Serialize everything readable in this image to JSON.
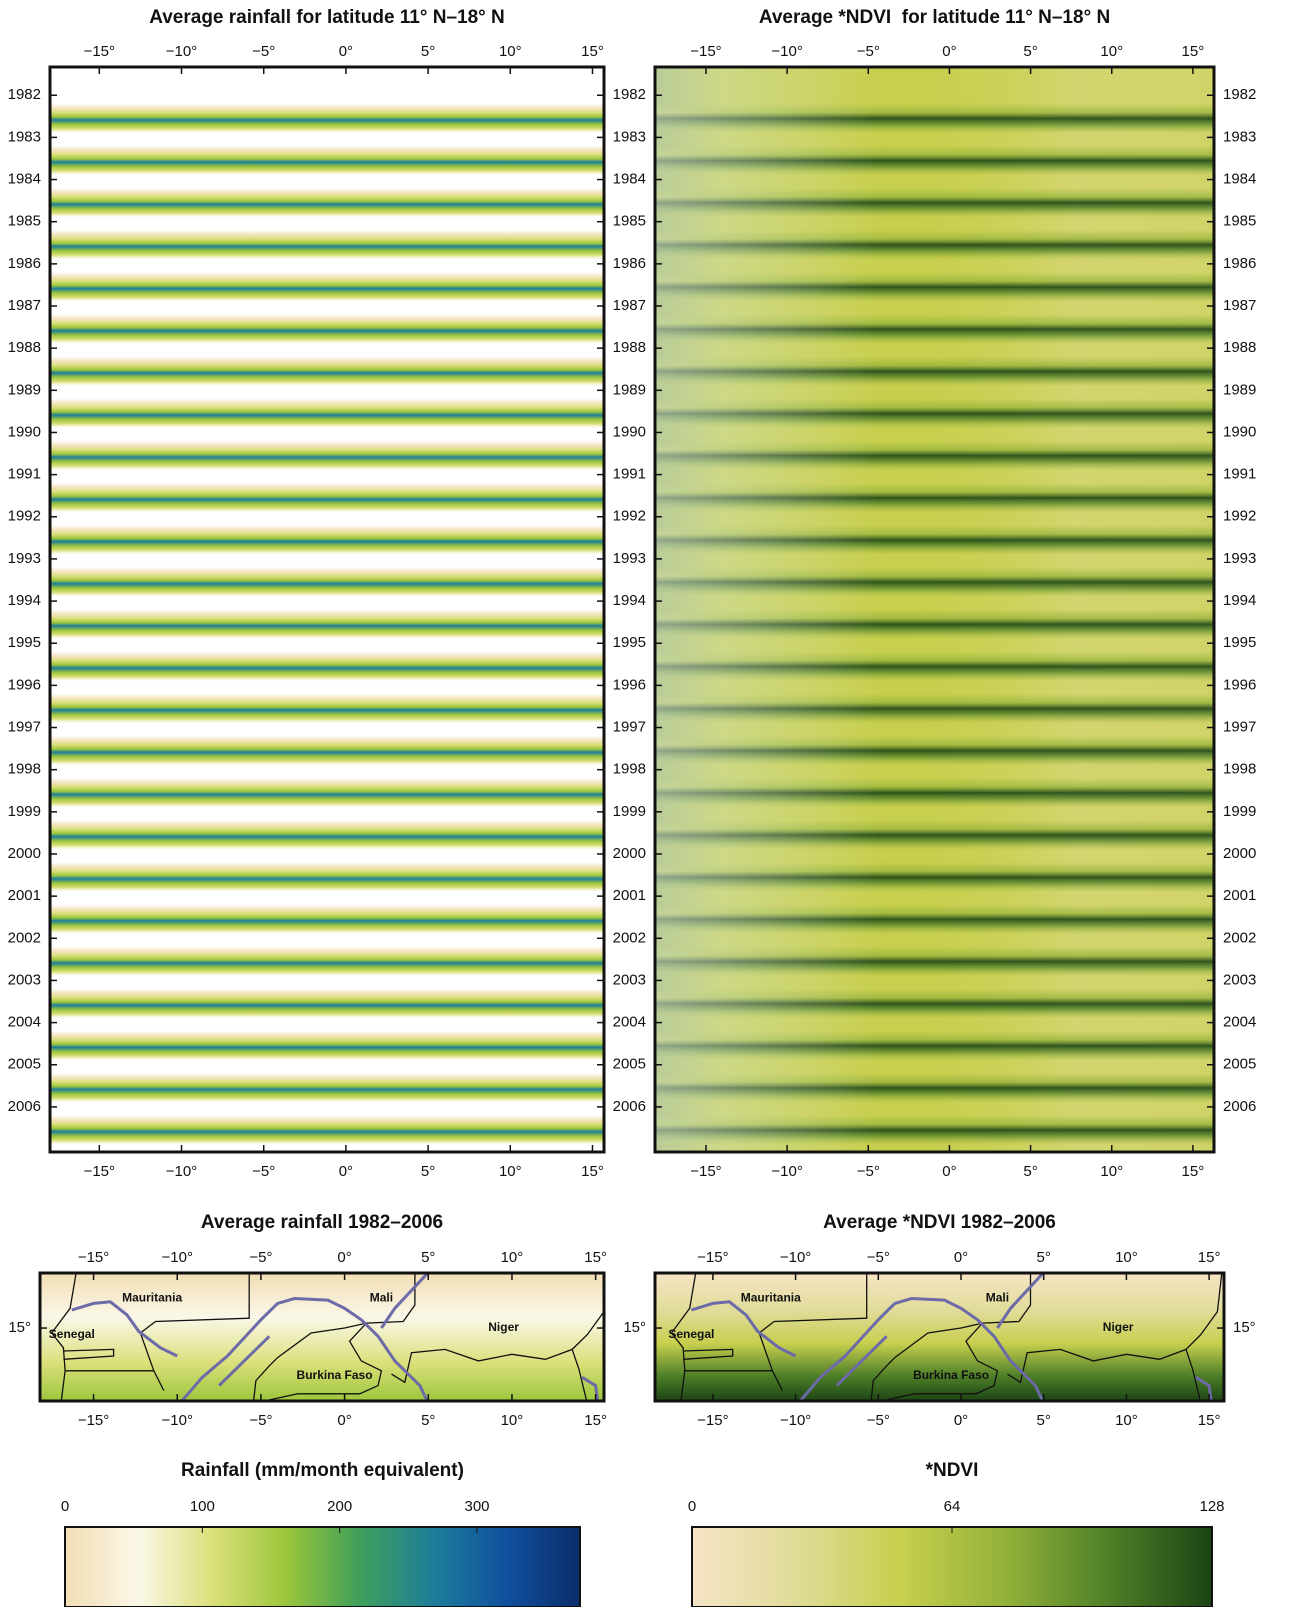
{
  "chart_data": [
    {
      "type": "heatmap",
      "title": "Average rainfall for latitude 11° N–18° N",
      "xlim": [
        -18,
        15.7
      ],
      "xticks": [
        {
          "value": -15,
          "label": "−15°"
        },
        {
          "value": -10,
          "label": "−10°"
        },
        {
          "value": -5,
          "label": "−5°"
        },
        {
          "value": 0,
          "label": "0°"
        },
        {
          "value": 5,
          "label": "5°"
        },
        {
          "value": 10,
          "label": "10°"
        },
        {
          "value": 15,
          "label": "15°"
        }
      ],
      "ylim": [
        2007.07,
        1981.33
      ],
      "yticks": [
        1982,
        1983,
        1984,
        1985,
        1986,
        1987,
        1988,
        1989,
        1990,
        1991,
        1992,
        1993,
        1994,
        1995,
        1996,
        1997,
        1998,
        1999,
        2000,
        2001,
        2002,
        2003,
        2004,
        2005,
        2006
      ]
    },
    {
      "type": "heatmap",
      "title": "Average *NDVI  for latitude 11° N–18° N",
      "xlim": [
        -18.14,
        16.3
      ],
      "xticks": [
        {
          "value": -15,
          "label": "−15°"
        },
        {
          "value": -10,
          "label": "−10°"
        },
        {
          "value": -5,
          "label": "−5°"
        },
        {
          "value": 0,
          "label": "0°"
        },
        {
          "value": 5,
          "label": "5°"
        },
        {
          "value": 10,
          "label": "10°"
        },
        {
          "value": 15,
          "label": "15°"
        }
      ],
      "ylim": [
        2007.07,
        1981.33
      ],
      "yticks": [
        1982,
        1983,
        1984,
        1985,
        1986,
        1987,
        1988,
        1989,
        1990,
        1991,
        1992,
        1993,
        1994,
        1995,
        1996,
        1997,
        1998,
        1999,
        2000,
        2001,
        2002,
        2003,
        2004,
        2005,
        2006
      ]
    },
    {
      "type": "map",
      "title": "Average rainfall 1982–2006",
      "xlim": [
        -18.2,
        15.5
      ],
      "xticks": [
        {
          "value": -15,
          "label": "−15°"
        },
        {
          "value": -10,
          "label": "−10°"
        },
        {
          "value": -5,
          "label": "−5°"
        },
        {
          "value": 0,
          "label": "0°"
        },
        {
          "value": 5,
          "label": "5°"
        },
        {
          "value": 10,
          "label": "10°"
        },
        {
          "value": 15,
          "label": "15°"
        }
      ],
      "ylim": [
        10.56,
        18.35
      ],
      "yticks": [
        {
          "value": 15,
          "label": "15°"
        }
      ],
      "labels": [
        "Mauritania",
        "Senegal",
        "Mali",
        "Niger",
        "Burkina Faso"
      ]
    },
    {
      "type": "map",
      "title": "Average *NDVI 1982–2006",
      "xlim": [
        -18.5,
        15.9
      ],
      "xticks": [
        {
          "value": -15,
          "label": "−15°"
        },
        {
          "value": -10,
          "label": "−10°"
        },
        {
          "value": -5,
          "label": "−5°"
        },
        {
          "value": 0,
          "label": "0°"
        },
        {
          "value": 5,
          "label": "5°"
        },
        {
          "value": 10,
          "label": "10°"
        },
        {
          "value": 15,
          "label": "15°"
        }
      ],
      "ylim": [
        10.56,
        18.35
      ],
      "yticks": [
        {
          "value": 15,
          "label": "15°"
        }
      ],
      "labels": [
        "Mauritania",
        "Senegal",
        "Mali",
        "Niger",
        "Burkina Faso"
      ]
    },
    {
      "type": "colorbar",
      "title": "Rainfall (mm/month equivalent)",
      "xlim": [
        0,
        375
      ],
      "xticks": [
        0,
        100,
        200,
        300
      ],
      "colors": [
        "#f1deb4",
        "#fbf7e8",
        "#dbe07a",
        "#9cc63c",
        "#3f9f5a",
        "#1d7e9a",
        "#10509e",
        "#0b2d6b"
      ]
    },
    {
      "type": "colorbar",
      "title": "*NDVI",
      "xlim": [
        0,
        128
      ],
      "xticks": [
        0,
        64,
        128
      ],
      "colors": [
        "#f6e4c6",
        "#e0dc98",
        "#c8cf4e",
        "#94b23a",
        "#4f8028",
        "#1c4414"
      ]
    }
  ]
}
